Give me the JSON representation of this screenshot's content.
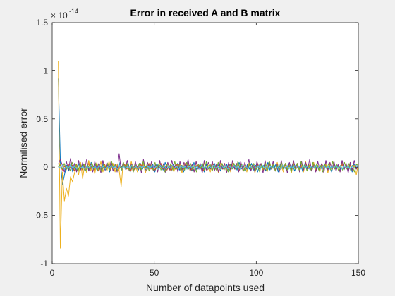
{
  "chart_data": {
    "type": "line",
    "title": "Error in received A and B matrix",
    "xlabel": "Number of datapoints used",
    "ylabel": "Normilised error",
    "exponent_label": "× 10",
    "exponent_power": "-14",
    "xlim": [
      0,
      150
    ],
    "ylim": [
      -1,
      1.5
    ],
    "xticks": [
      0,
      50,
      100,
      150
    ],
    "xtick_labels": [
      "0",
      "50",
      "100",
      "150"
    ],
    "yticks": [
      -1,
      -0.5,
      0,
      0.5,
      1,
      1.5
    ],
    "ytick_labels": [
      "-1",
      "-0.5",
      "0",
      "0.5",
      "1",
      "1.5"
    ],
    "grid": false,
    "box": true,
    "x_start": 3,
    "x_end": 150,
    "series": [
      {
        "color": "#0072BD",
        "values": [
          0.92,
          0.05,
          -0.18,
          -0.08,
          0.02,
          -0.04,
          0.03,
          -0.05,
          0.02,
          -0.03,
          0.04,
          -0.02,
          0.03,
          -0.04,
          0.02,
          -0.03,
          0.05,
          -0.02,
          0.01,
          -0.04,
          0.03,
          -0.02,
          0.04,
          -0.03,
          0.02,
          -0.05,
          0.03,
          -0.01,
          0.02,
          -0.04,
          0.05,
          -0.03,
          0.02,
          -0.02,
          0.04,
          -0.05,
          0.03,
          -0.02,
          0.01,
          -0.03,
          0.04,
          -0.02,
          0.03,
          -0.04,
          0.02,
          -0.01,
          0.03,
          -0.05,
          0.04,
          -0.02,
          0.02,
          -0.03,
          0.05,
          -0.02,
          0.01,
          -0.04,
          0.03,
          -0.02,
          0.04,
          -0.03,
          0.02,
          -0.05,
          0.03,
          -0.01,
          0.02,
          -0.04,
          0.05,
          -0.03,
          0.02,
          -0.02,
          0.04,
          -0.05,
          0.03,
          -0.02,
          0.01,
          -0.03,
          0.04,
          -0.02,
          0.03,
          -0.04,
          0.02,
          -0.01,
          0.03,
          -0.05,
          0.04,
          -0.02,
          0.02,
          -0.03,
          0.05,
          -0.02,
          0.01,
          -0.04,
          0.03,
          -0.02,
          0.04,
          -0.03,
          0.02,
          -0.05,
          0.03,
          -0.01,
          0.02,
          -0.04,
          0.05,
          -0.03,
          0.02,
          -0.02,
          0.04,
          -0.05,
          0.03,
          -0.02,
          0.01,
          -0.03,
          0.04,
          -0.02,
          0.03,
          -0.04,
          0.02,
          -0.01,
          0.03,
          -0.05,
          0.04,
          -0.02,
          0.02,
          -0.03,
          0.05,
          -0.02,
          0.01,
          -0.04,
          0.03,
          -0.02,
          0.04,
          -0.03,
          0.02,
          -0.05,
          0.03,
          -0.01,
          0.02,
          -0.04,
          0.05,
          -0.03,
          0.02,
          -0.02,
          0.04,
          -0.05,
          0.03,
          -0.02,
          0.01
        ]
      },
      {
        "color": "#D95319",
        "values": [
          0.0,
          0.02,
          -0.03,
          0.01,
          -0.02,
          0.03,
          -0.01,
          0.02,
          -0.04,
          0.03,
          -0.02,
          0.01,
          -0.03,
          0.02,
          -0.01,
          0.04,
          -0.02,
          0.01,
          -0.03,
          0.02,
          -0.04,
          0.01,
          -0.02,
          0.03,
          -0.01,
          0.02,
          -0.03,
          0.04,
          -0.02,
          0.01,
          -0.03,
          0.02,
          -0.01,
          0.03,
          -0.02,
          0.01,
          -0.04,
          0.02,
          -0.03,
          0.01,
          -0.02,
          0.03,
          -0.01,
          0.02,
          -0.03,
          0.04,
          -0.02,
          0.01,
          -0.03,
          0.02,
          -0.01,
          0.04,
          -0.02,
          0.01,
          -0.03,
          0.02,
          -0.04,
          0.01,
          -0.02,
          0.03,
          -0.01,
          0.02,
          -0.03,
          0.04,
          -0.02,
          0.01,
          -0.03,
          0.02,
          -0.01,
          0.03,
          -0.02,
          0.01,
          -0.04,
          0.02,
          -0.03,
          0.01,
          -0.02,
          0.03,
          -0.01,
          0.02,
          -0.03,
          0.04,
          -0.02,
          0.01,
          -0.03,
          0.02,
          -0.01,
          0.04,
          -0.02,
          0.01,
          -0.03,
          0.02,
          -0.04,
          0.01,
          -0.02,
          0.03,
          -0.01,
          0.02,
          -0.03,
          0.04,
          -0.02,
          0.01,
          -0.03,
          0.02,
          -0.01,
          0.03,
          -0.02,
          0.01,
          -0.04,
          0.02,
          -0.03,
          0.01,
          -0.02,
          0.03,
          -0.01,
          0.02,
          -0.03,
          0.04,
          -0.02,
          0.01,
          -0.03,
          0.02,
          -0.01,
          0.04,
          -0.02,
          0.01,
          -0.03,
          0.02,
          -0.04,
          0.01,
          -0.02,
          0.03,
          -0.01,
          0.02,
          -0.03,
          0.04,
          -0.02,
          0.01,
          -0.03,
          0.02,
          -0.01,
          0.03,
          -0.02,
          0.01,
          -0.04,
          0.02,
          -0.03,
          0.01,
          -0.02,
          0.03
        ]
      },
      {
        "color": "#EDB120",
        "values": [
          1.1,
          -0.84,
          -0.05,
          -0.35,
          -0.22,
          -0.3,
          -0.1,
          -0.15,
          -0.06,
          0.02,
          -0.08,
          0.05,
          -0.12,
          0.03,
          -0.06,
          0.07,
          -0.04,
          0.02,
          -0.07,
          0.05,
          -0.03,
          0.06,
          -0.05,
          0.02,
          -0.04,
          0.06,
          -0.02,
          0.04,
          -0.05,
          0.03,
          -0.03,
          -0.2,
          0.05,
          -0.02,
          0.03,
          -0.04,
          0.06,
          -0.03,
          0.02,
          -0.05,
          0.04,
          -0.02,
          0.03,
          -0.06,
          0.05,
          -0.02,
          0.04,
          -0.03,
          0.02,
          -0.05,
          0.06,
          -0.02,
          0.03,
          -0.04,
          0.05,
          -0.03,
          0.02,
          -0.05,
          0.04,
          -0.02,
          0.03,
          -0.06,
          0.05,
          -0.02,
          0.04,
          -0.03,
          0.02,
          -0.05,
          0.06,
          -0.02,
          0.03,
          -0.04,
          0.05,
          -0.03,
          0.02,
          -0.05,
          0.04,
          -0.02,
          0.03,
          -0.06,
          0.05,
          -0.02,
          0.04,
          -0.03,
          0.02,
          -0.05,
          0.06,
          -0.02,
          0.03,
          -0.04,
          0.05,
          -0.03,
          0.02,
          -0.05,
          0.04,
          -0.02,
          0.03,
          -0.06,
          0.05,
          -0.02,
          0.04,
          -0.03,
          0.02,
          -0.05,
          0.06,
          -0.02,
          0.03,
          -0.04,
          0.05,
          -0.03,
          0.02,
          -0.05,
          0.04,
          -0.02,
          0.03,
          -0.06,
          0.05,
          -0.02,
          0.04,
          -0.03,
          0.02,
          -0.05,
          0.06,
          -0.02,
          0.03,
          -0.04,
          0.05,
          -0.03,
          0.02,
          -0.05,
          0.04,
          -0.02,
          0.03,
          -0.06,
          0.05,
          -0.02,
          0.04,
          -0.03,
          0.02,
          -0.05,
          0.06,
          -0.02,
          0.03,
          -0.04,
          0.05,
          -0.03,
          0.02,
          -0.08,
          0.04
        ]
      },
      {
        "color": "#7E2F8E",
        "values": [
          0.03,
          0.08,
          0.02,
          -0.05,
          0.06,
          -0.03,
          0.09,
          -0.02,
          0.04,
          -0.05,
          0.07,
          -0.03,
          0.05,
          -0.02,
          0.08,
          -0.04,
          0.03,
          -0.05,
          0.06,
          -0.02,
          0.04,
          -0.06,
          0.07,
          -0.03,
          0.05,
          -0.02,
          0.06,
          -0.04,
          0.03,
          -0.05,
          0.14,
          -0.03,
          0.05,
          -0.02,
          0.07,
          -0.04,
          0.03,
          -0.05,
          0.06,
          -0.02,
          0.04,
          -0.06,
          0.08,
          -0.03,
          0.05,
          -0.02,
          0.06,
          -0.04,
          0.03,
          -0.05,
          0.07,
          -0.02,
          0.04,
          -0.06,
          0.05,
          -0.03,
          0.07,
          -0.02,
          0.04,
          -0.05,
          0.06,
          -0.03,
          0.05,
          -0.02,
          0.08,
          -0.04,
          0.03,
          -0.05,
          0.06,
          -0.02,
          0.04,
          -0.06,
          0.07,
          -0.03,
          0.05,
          -0.02,
          0.06,
          -0.04,
          0.03,
          -0.05,
          0.07,
          -0.02,
          0.04,
          -0.06,
          0.05,
          -0.03,
          0.07,
          -0.02,
          0.04,
          -0.05,
          0.06,
          -0.03,
          0.05,
          -0.02,
          0.08,
          -0.04,
          0.03,
          -0.05,
          0.06,
          -0.02,
          0.04,
          -0.06,
          0.07,
          -0.03,
          0.05,
          -0.02,
          0.06,
          -0.04,
          0.03,
          -0.05,
          0.07,
          -0.02,
          0.04,
          -0.06,
          0.05,
          -0.03,
          0.07,
          -0.02,
          0.04,
          -0.05,
          0.06,
          -0.03,
          0.05,
          -0.02,
          0.08,
          -0.04,
          0.03,
          -0.05,
          0.06,
          -0.02,
          0.04,
          -0.06,
          0.07,
          -0.03,
          0.05,
          -0.02,
          0.06,
          -0.04,
          0.03,
          -0.05,
          0.07,
          -0.02,
          0.04,
          -0.06,
          0.05,
          -0.03,
          0.07,
          -0.02,
          0.04
        ]
      },
      {
        "color": "#77AC30",
        "values": [
          0.0,
          0.03,
          -0.02,
          0.04,
          -0.03,
          0.02,
          -0.04,
          0.05,
          -0.02,
          0.03,
          -0.05,
          0.04,
          -0.02,
          0.03,
          -0.04,
          0.02,
          -0.03,
          0.05,
          -0.02,
          0.04,
          -0.03,
          0.02,
          -0.05,
          0.03,
          -0.02,
          0.04,
          -0.03,
          0.06,
          -0.02,
          0.03,
          -0.04,
          0.02,
          -0.03,
          0.05,
          -0.02,
          0.04,
          -0.03,
          0.02,
          -0.05,
          0.03,
          -0.02,
          0.04,
          -0.03,
          0.06,
          -0.02,
          0.03,
          -0.04,
          0.02,
          -0.03,
          0.05,
          -0.02,
          0.04,
          -0.03,
          0.02,
          -0.05,
          0.03,
          -0.02,
          0.04,
          -0.03,
          0.06,
          -0.02,
          0.03,
          -0.04,
          0.02,
          -0.03,
          0.05,
          -0.02,
          0.04,
          -0.03,
          0.02,
          -0.05,
          0.03,
          -0.02,
          0.04,
          -0.03,
          0.06,
          -0.02,
          0.03,
          -0.04,
          0.02,
          -0.03,
          0.05,
          -0.02,
          0.04,
          -0.03,
          0.02,
          -0.05,
          0.03,
          -0.02,
          0.04,
          -0.03,
          0.06,
          -0.02,
          0.03,
          -0.04,
          0.02,
          -0.03,
          0.05,
          -0.02,
          0.04,
          -0.03,
          0.02,
          -0.05,
          0.03,
          -0.02,
          0.04,
          -0.03,
          0.06,
          -0.02,
          0.03,
          -0.04,
          0.02,
          -0.03,
          0.05,
          -0.02,
          0.04,
          -0.03,
          0.02,
          -0.05,
          0.03,
          -0.02,
          0.04,
          -0.03,
          0.06,
          -0.02,
          0.03,
          -0.04,
          0.02,
          -0.03,
          0.05,
          -0.02,
          0.04,
          -0.03,
          0.02,
          -0.05,
          0.03,
          -0.02,
          0.04,
          -0.03,
          0.06,
          -0.02,
          0.03,
          -0.04,
          0.02,
          -0.03,
          0.05,
          -0.02,
          0.04,
          -0.03,
          0.02,
          -0.05,
          0.03,
          0.02
        ]
      },
      {
        "color": "#4DBEEE",
        "values": [
          0.01,
          -0.01,
          0.02,
          -0.02,
          0.01,
          -0.01,
          0.02,
          -0.01,
          0.01,
          -0.02,
          0.02,
          -0.01,
          0.01,
          -0.02,
          0.01,
          -0.01,
          0.02,
          -0.01,
          0.01,
          -0.02,
          0.02,
          -0.01,
          0.01,
          -0.02,
          0.01,
          -0.01,
          0.02,
          -0.01,
          0.01,
          -0.02,
          0.02,
          -0.01,
          0.01,
          -0.02,
          0.01,
          -0.01,
          0.02,
          -0.01,
          0.01,
          -0.02,
          0.02,
          -0.01,
          0.01,
          -0.02,
          0.01,
          -0.01,
          0.02,
          -0.01,
          0.01,
          -0.02,
          0.02,
          -0.01,
          0.01,
          -0.02,
          0.01,
          -0.01,
          0.02,
          -0.01,
          0.01,
          -0.02,
          0.02,
          -0.01,
          0.01,
          -0.02,
          0.01,
          -0.01,
          0.02,
          -0.01,
          0.01,
          -0.02,
          0.02,
          -0.01,
          0.01,
          -0.02,
          0.01,
          -0.01,
          0.02,
          -0.01,
          0.01,
          -0.02,
          0.02,
          -0.01,
          0.01,
          -0.02,
          0.01,
          -0.01,
          0.02,
          -0.01,
          0.01,
          -0.02,
          0.02,
          -0.01,
          0.01,
          -0.02,
          0.01,
          -0.01,
          0.02,
          -0.01,
          0.01,
          -0.02,
          0.02,
          -0.01,
          0.01,
          -0.02,
          0.01,
          -0.01,
          0.02,
          -0.01,
          0.01,
          -0.02,
          0.02,
          -0.01,
          0.01,
          -0.02,
          0.01,
          -0.01,
          0.02,
          -0.01,
          0.01,
          -0.02,
          0.02,
          -0.01,
          0.01,
          -0.02,
          0.01,
          -0.01,
          0.02,
          -0.01,
          0.01,
          -0.02,
          0.02,
          -0.01,
          0.01,
          -0.02,
          0.01,
          -0.01,
          0.02,
          -0.01,
          0.01,
          -0.02,
          0.02,
          -0.01,
          0.01,
          -0.02,
          0.01,
          -0.01,
          0.02,
          -0.01
        ]
      }
    ]
  }
}
